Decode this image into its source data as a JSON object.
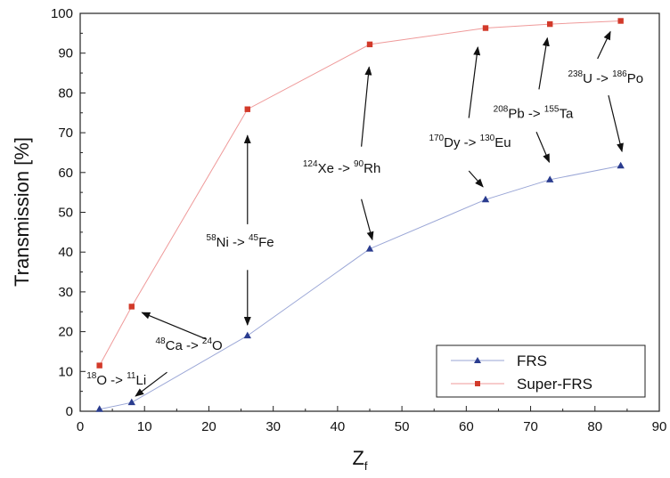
{
  "chart_data": {
    "type": "line",
    "title": "",
    "xlabel": "Z",
    "xlabel_sub": "f",
    "ylabel": "Transmission [%]",
    "xlim": [
      0,
      90
    ],
    "ylim": [
      0,
      100
    ],
    "xticks": [
      0,
      10,
      20,
      30,
      40,
      50,
      60,
      70,
      80,
      90
    ],
    "yticks": [
      0,
      10,
      20,
      30,
      40,
      50,
      60,
      70,
      80,
      90,
      100
    ],
    "grid": false,
    "legend_position": "bottom-right",
    "series": [
      {
        "name": "FRS",
        "marker": "triangle",
        "color": "#2a3c8f",
        "line_color": "#9aa6d6",
        "x": [
          3,
          8,
          26,
          45,
          63,
          73,
          84
        ],
        "y": [
          0.5,
          2.2,
          19,
          40.8,
          53.2,
          58.2,
          61.7
        ]
      },
      {
        "name": "Super-FRS",
        "marker": "square",
        "color": "#d23a2a",
        "line_color": "#ef9a9a",
        "x": [
          3,
          8,
          26,
          45,
          63,
          73,
          84
        ],
        "y": [
          11.5,
          26.3,
          75.9,
          92.2,
          96.3,
          97.3,
          98.1
        ]
      }
    ],
    "annotations": [
      {
        "parts": [
          {
            "sup": "18"
          },
          {
            "t": "O -> "
          },
          {
            "sup": "11"
          },
          {
            "t": "Li"
          }
        ],
        "pos": [
          1,
          6.7
        ],
        "arrows": [
          [
            13.5,
            9.8,
            8.6,
            3.8
          ]
        ]
      },
      {
        "parts": [
          {
            "sup": "48"
          },
          {
            "t": "Ca -> "
          },
          {
            "sup": "24"
          },
          {
            "t": "O"
          }
        ],
        "pos": [
          11.7,
          15.4
        ],
        "arrows": [
          [
            19.6,
            18.1,
            9.6,
            24.8
          ]
        ]
      },
      {
        "parts": [
          {
            "sup": "58"
          },
          {
            "t": "Ni -> "
          },
          {
            "sup": "45"
          },
          {
            "t": "Fe"
          }
        ],
        "pos": [
          19.6,
          41.4
        ],
        "arrows": [
          [
            26,
            47,
            26,
            69.3
          ],
          [
            26,
            35.5,
            26,
            21.7
          ]
        ]
      },
      {
        "parts": [
          {
            "sup": "124"
          },
          {
            "t": "Xe -> "
          },
          {
            "sup": "90"
          },
          {
            "t": "Rh"
          }
        ],
        "pos": [
          34.6,
          59.9
        ],
        "arrows": [
          [
            43.7,
            66.5,
            44.9,
            86.5
          ],
          [
            43.7,
            53.3,
            45.4,
            43.1
          ]
        ]
      },
      {
        "parts": [
          {
            "sup": "170"
          },
          {
            "t": "Dy -> "
          },
          {
            "sup": "130"
          },
          {
            "t": "Eu"
          }
        ],
        "pos": [
          54.2,
          66.4
        ],
        "arrows": [
          [
            60.4,
            73.7,
            61.8,
            91.5
          ],
          [
            60.4,
            60.4,
            62.6,
            56.4
          ]
        ]
      },
      {
        "parts": [
          {
            "sup": "208"
          },
          {
            "t": "Pb -> "
          },
          {
            "sup": "155"
          },
          {
            "t": "Ta"
          }
        ],
        "pos": [
          64.2,
          73.7
        ],
        "arrows": [
          [
            71.3,
            80.9,
            72.6,
            93.8
          ],
          [
            70.9,
            70.2,
            72.9,
            62.6
          ]
        ]
      },
      {
        "parts": [
          {
            "sup": "238"
          },
          {
            "t": "U -> "
          },
          {
            "sup": "186"
          },
          {
            "t": "Po"
          }
        ],
        "pos": [
          75.8,
          82.6
        ],
        "arrows": [
          [
            80.4,
            88.6,
            82.4,
            95.4
          ],
          [
            82.1,
            79.4,
            84.2,
            65.3
          ]
        ]
      }
    ]
  }
}
